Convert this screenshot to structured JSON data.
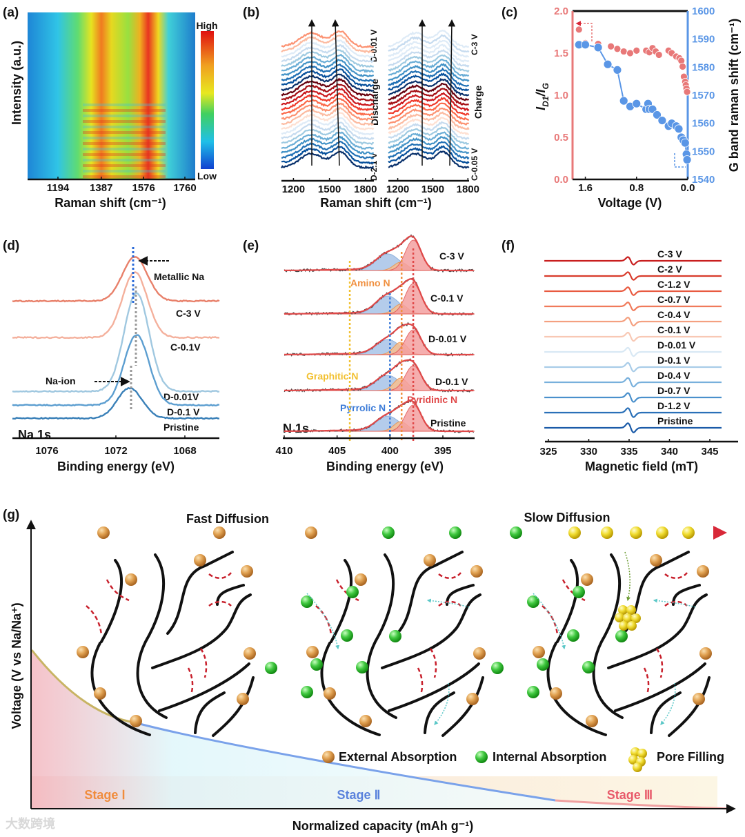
{
  "chart_data": [
    {
      "panel": "(a)",
      "type": "heatmap",
      "xlabel": "Raman shift (cm⁻¹)",
      "ylabel": "Intensity (a.u.)",
      "xticks": [
        1194,
        1387,
        1576,
        1760
      ],
      "colorbar": {
        "high": "High",
        "low": "Low"
      },
      "bands_cm-1": [
        1350,
        1590
      ]
    },
    {
      "panel": "(b)",
      "type": "line",
      "xlabel": "Raman shift (cm⁻¹)",
      "xticks": [
        1200,
        1500,
        1800
      ],
      "peaks_cm-1": [
        1350,
        1590
      ],
      "subplots": [
        {
          "process": "Discharge",
          "start": "D-2.1 V",
          "end": "D-0.01 V",
          "n_traces": 26
        },
        {
          "process": "Charge",
          "start": "C-0.05 V",
          "end": "C-3 V",
          "n_traces": 26
        }
      ]
    },
    {
      "panel": "(c)",
      "type": "scatter",
      "xlabel": "Voltage (V)",
      "ylabel_left": {
        "main": "I",
        "sub1": "D1",
        "mid": "/I",
        "sub2": "G"
      },
      "ylabel_right": "G band raman shift (cm⁻¹)",
      "xlim": [
        1.8,
        0.0
      ],
      "xticks": [
        "1.6",
        "0.8",
        "0.0"
      ],
      "ylim_left": [
        0,
        2
      ],
      "yticks_left": [
        "0.0",
        "0.5",
        "1.0",
        "1.5",
        "2.0"
      ],
      "ylim_right": [
        1540,
        1600
      ],
      "yticks_right": [
        "1540",
        "1550",
        "1560",
        "1570",
        "1580",
        "1590",
        "1600"
      ],
      "series": [
        {
          "name": "ID1/IG",
          "axis": "left",
          "color": "#e87878",
          "x": [
            1.7,
            1.6,
            1.4,
            1.2,
            1.1,
            1.0,
            0.9,
            0.8,
            0.65,
            0.6,
            0.55,
            0.5,
            0.45,
            0.3,
            0.25,
            0.18,
            0.13,
            0.1,
            0.08,
            0.06,
            0.04,
            0.03,
            0.02,
            0.01
          ],
          "y": [
            1.78,
            1.62,
            1.61,
            1.58,
            1.55,
            1.52,
            1.5,
            1.53,
            1.53,
            1.51,
            1.56,
            1.52,
            1.48,
            1.53,
            1.5,
            1.46,
            1.44,
            1.41,
            1.34,
            1.22,
            1.16,
            1.12,
            1.08,
            1.04
          ]
        },
        {
          "name": "G band",
          "axis": "right",
          "color": "#5a96e6",
          "x": [
            1.7,
            1.6,
            1.4,
            1.25,
            1.1,
            1.0,
            0.9,
            0.8,
            0.65,
            0.62,
            0.6,
            0.55,
            0.48,
            0.4,
            0.3,
            0.25,
            0.18,
            0.14,
            0.1,
            0.07,
            0.04,
            0.02,
            0.01
          ],
          "y": [
            1588,
            1588,
            1587,
            1581,
            1579,
            1568,
            1566,
            1567,
            1565,
            1567,
            1565,
            1565,
            1563,
            1561,
            1559,
            1560,
            1559,
            1558,
            1555,
            1554,
            1553,
            1549,
            1547
          ]
        }
      ]
    },
    {
      "panel": "(d)",
      "type": "line",
      "core_level": "Na 1s",
      "xlabel": "Binding energy (eV)",
      "xlim": [
        1078,
        1066
      ],
      "xticks": [
        1076,
        1072,
        1068
      ],
      "annotations": {
        "metallic": "Metallic Na",
        "ion": "Na-ion"
      },
      "traces": [
        {
          "name": "C-3 V",
          "peak_eV": 1070.9,
          "color": "#e8806a"
        },
        {
          "name": "C-0.1V",
          "peak_eV": 1070.9,
          "color": "#f4b09c"
        },
        {
          "name": "D-0.01V",
          "peak_eV": 1070.8,
          "color": "#a0c8e0"
        },
        {
          "name": "D-0.1 V",
          "peak_eV": 1070.8,
          "color": "#5c9ed0"
        },
        {
          "name": "Pristine",
          "peak_eV": 1071.2,
          "color": "#3a80b8"
        }
      ]
    },
    {
      "panel": "(e)",
      "type": "line",
      "core_level": "N 1s",
      "xlabel": "Binding energy (eV)",
      "xlim": [
        410,
        392
      ],
      "xticks": [
        410,
        405,
        400,
        395
      ],
      "components": [
        {
          "name": "Graphitic N",
          "center_eV": 403.8,
          "color": "#f2c030"
        },
        {
          "name": "Pyrrolic N",
          "center_eV": 400.0,
          "color": "#3a7ad8"
        },
        {
          "name": "Amino N",
          "center_eV": 398.9,
          "color": "#f09040"
        },
        {
          "name": "Pyridinic N",
          "center_eV": 397.8,
          "color": "#e04848"
        }
      ],
      "traces": [
        "C-3 V",
        "C-0.1 V",
        "D-0.01 V",
        "D-0.1 V",
        "Pristine"
      ]
    },
    {
      "panel": "(f)",
      "type": "line",
      "xlabel": "Magnetic field (mT)",
      "xlim": [
        324.5,
        346.5
      ],
      "xticks": [
        325,
        330,
        335,
        340,
        345
      ],
      "signal_center_mT": 335.2,
      "traces": [
        "C-3 V",
        "C-2 V",
        "C-1.2 V",
        "C-0.7 V",
        "C-0.4 V",
        "C-0.1 V",
        "D-0.01 V",
        "D-0.1 V",
        "D-0.4 V",
        "D-0.7 V",
        "D-1.2 V",
        "Pristine"
      ]
    }
  ],
  "diagram": {
    "panel": "(g)",
    "fast": "Fast Diffusion",
    "slow": "Slow Diffusion",
    "ylabel": "Voltage (V vs Na/Na⁺)",
    "xlabel": "Normalized capacity (mAh g⁻¹)",
    "stages": [
      "Stage Ⅰ",
      "Stage Ⅱ",
      "Stage Ⅲ"
    ],
    "legend": [
      "External Absorption",
      "Internal  Absorption",
      "Pore Filling"
    ],
    "watermark": "大数跨境"
  }
}
